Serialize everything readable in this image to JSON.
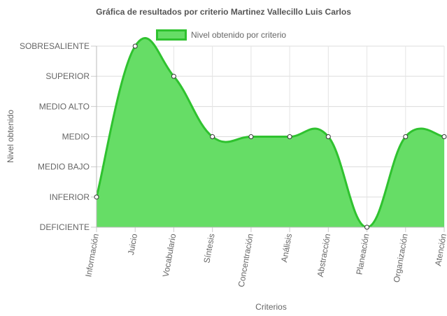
{
  "chart_data": {
    "type": "area",
    "title": "Gráfica de resultados por criterio Martinez Vallecillo Luis Carlos",
    "xlabel": "Criterios",
    "ylabel": "Nivel obtenido",
    "y_levels": [
      "DEFICIENTE",
      "INFERIOR",
      "MEDIO BAJO",
      "MEDIO",
      "MEDIO ALTO",
      "SUPERIOR",
      "SOBRESALIENTE"
    ],
    "categories": [
      "Información",
      "Juicio",
      "Vocabulario",
      "Síntesis",
      "Concentración",
      "Análisis",
      "Abstracción",
      "Planeación",
      "Organización",
      "Atención"
    ],
    "series": [
      {
        "name": "Nivel obtenido por criterio",
        "values": [
          "INFERIOR",
          "SOBRESALIENTE",
          "SUPERIOR",
          "MEDIO",
          "MEDIO",
          "MEDIO",
          "MEDIO",
          "DEFICIENTE",
          "MEDIO",
          "MEDIO"
        ],
        "color": "#2fc22f",
        "fill": "#66dd66"
      }
    ],
    "grid": true,
    "legend": "top"
  }
}
